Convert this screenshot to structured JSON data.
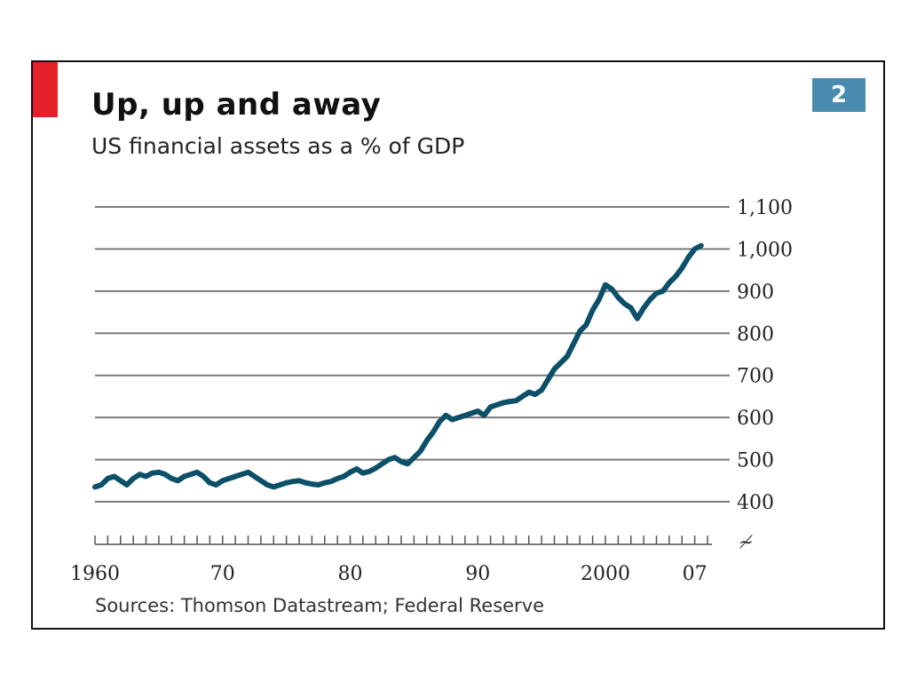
{
  "colors": {
    "line": "#0b5068",
    "grid": "#7a7a7a",
    "accent_red": "#e5222a",
    "badge_bg": "#4a8bb0"
  },
  "badge": "2",
  "source_note": "Sources: Thomson Datastream; Federal Reserve",
  "chart_data": {
    "type": "line",
    "title": "Up, up and away",
    "subtitle": "US financial assets as a % of GDP",
    "xlabel": "",
    "ylabel": "",
    "xlim": [
      1960,
      2008
    ],
    "ylim": [
      400,
      1100
    ],
    "y_ticks": [
      400,
      500,
      600,
      700,
      800,
      900,
      1000,
      1100
    ],
    "y_tick_labels": [
      "400",
      "500",
      "600",
      "700",
      "800",
      "900",
      "1,000",
      "1,100"
    ],
    "x_ticks": [
      1960,
      1970,
      1980,
      1990,
      2000,
      2007
    ],
    "x_tick_labels": [
      "1960",
      "70",
      "80",
      "90",
      "2000",
      "07"
    ],
    "axis_break": "≁",
    "grid": true,
    "series": [
      {
        "name": "US financial assets as a % of GDP",
        "x": [
          1960.0,
          1960.5,
          1961.0,
          1961.5,
          1962.0,
          1962.5,
          1963.0,
          1963.5,
          1964.0,
          1964.5,
          1965.0,
          1965.5,
          1966.0,
          1966.5,
          1967.0,
          1967.5,
          1968.0,
          1968.5,
          1969.0,
          1969.5,
          1970.0,
          1970.5,
          1971.0,
          1971.5,
          1972.0,
          1972.5,
          1973.0,
          1973.5,
          1974.0,
          1974.5,
          1975.0,
          1975.5,
          1976.0,
          1976.5,
          1977.0,
          1977.5,
          1978.0,
          1978.5,
          1979.0,
          1979.5,
          1980.0,
          1980.5,
          1981.0,
          1981.5,
          1982.0,
          1982.5,
          1983.0,
          1983.5,
          1984.0,
          1984.5,
          1985.0,
          1985.5,
          1986.0,
          1986.5,
          1987.0,
          1987.5,
          1988.0,
          1988.5,
          1989.0,
          1989.5,
          1990.0,
          1990.5,
          1991.0,
          1991.5,
          1992.0,
          1992.5,
          1993.0,
          1993.5,
          1994.0,
          1994.5,
          1995.0,
          1995.5,
          1996.0,
          1996.5,
          1997.0,
          1997.5,
          1998.0,
          1998.5,
          1999.0,
          1999.5,
          2000.0,
          2000.5,
          2001.0,
          2001.5,
          2002.0,
          2002.5,
          2003.0,
          2003.5,
          2004.0,
          2004.5,
          2005.0,
          2005.5,
          2006.0,
          2006.5,
          2007.0,
          2007.5
        ],
        "values": [
          435,
          440,
          455,
          460,
          450,
          440,
          455,
          465,
          460,
          468,
          470,
          465,
          455,
          450,
          460,
          465,
          470,
          460,
          445,
          440,
          450,
          455,
          460,
          465,
          470,
          460,
          450,
          440,
          435,
          440,
          445,
          448,
          450,
          445,
          442,
          440,
          445,
          448,
          455,
          460,
          470,
          478,
          468,
          472,
          480,
          490,
          500,
          505,
          495,
          490,
          505,
          520,
          545,
          565,
          590,
          605,
          595,
          600,
          605,
          610,
          615,
          605,
          625,
          630,
          635,
          638,
          640,
          650,
          660,
          655,
          665,
          690,
          715,
          730,
          745,
          775,
          805,
          820,
          855,
          880,
          915,
          905,
          885,
          870,
          860,
          835,
          860,
          880,
          895,
          900,
          920,
          935,
          955,
          980,
          1000,
          1008
        ]
      }
    ]
  }
}
